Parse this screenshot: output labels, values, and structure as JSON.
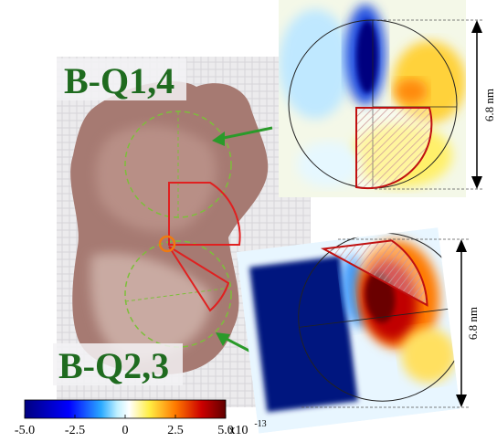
{
  "panels": [
    {
      "label": "B-Q1,4",
      "scale_label": "6.8 nm"
    },
    {
      "label": "B-Q2,3",
      "scale_label": "6.8 nm"
    }
  ],
  "colorbar": {
    "lim": [
      -5,
      5
    ],
    "ticks": [
      {
        "value": -5,
        "label": "-5.0"
      },
      -2.5,
      0,
      2.5,
      {
        "value": 5,
        "label": "5.0"
      }
    ],
    "multiplier": "x10",
    "exponent": "-13"
  }
}
